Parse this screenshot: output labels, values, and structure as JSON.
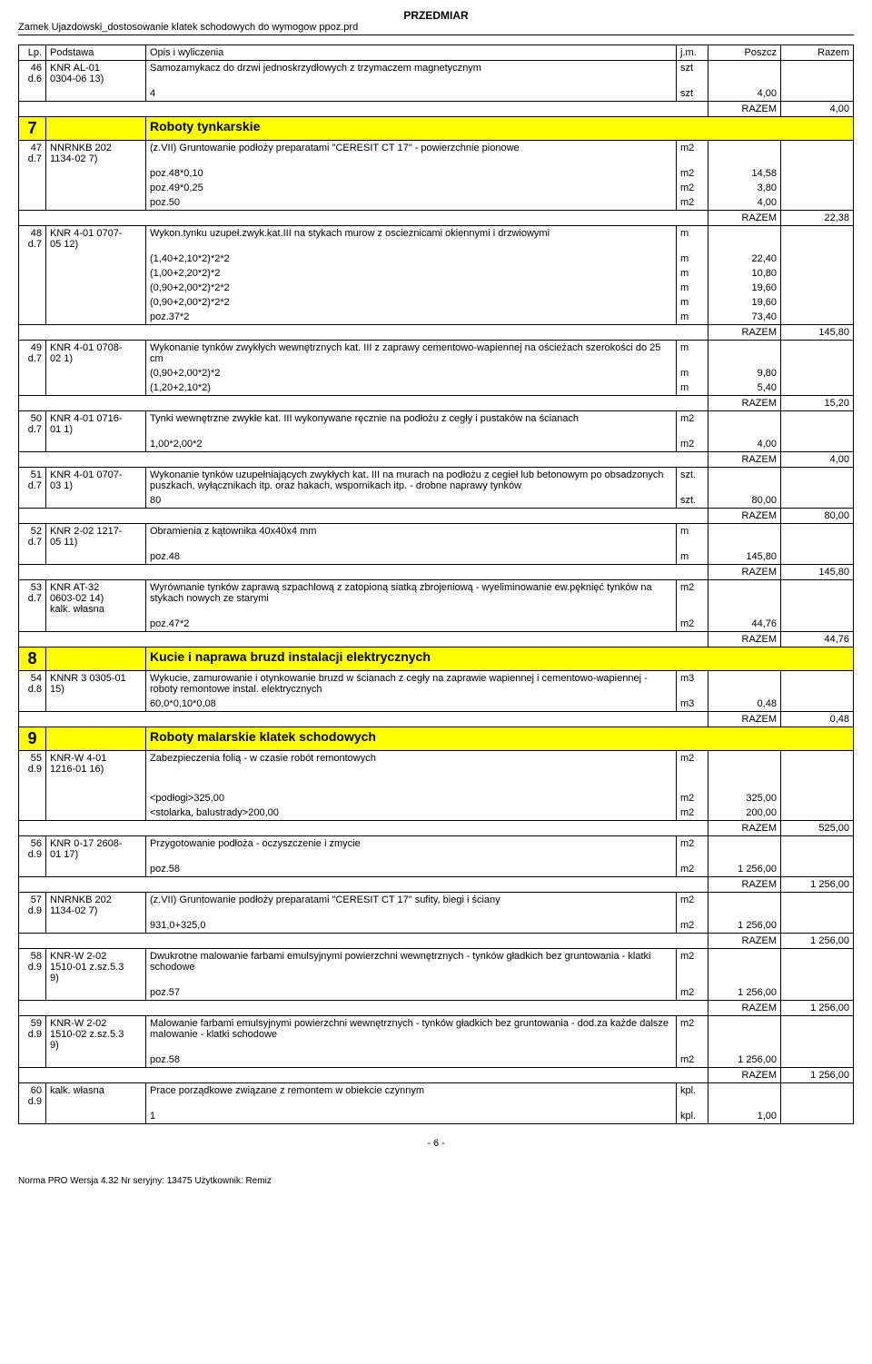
{
  "header": {
    "title": "PRZEDMIAR",
    "subtitle": "Zamek Ujazdowski_dostosowanie klatek schodowych do wymogow ppoz.prd"
  },
  "columns": {
    "lp": "Lp.",
    "podstawa": "Podstawa",
    "opis": "Opis i wyliczenia",
    "jm": "j.m.",
    "poszcz": "Poszcz",
    "razem": "Razem"
  },
  "r46": {
    "lp": "46",
    "sub": "d.6",
    "podst": "KNR AL-01",
    "podst2": "0304-06 13)",
    "opis": "Samozamykacz do drzwi jednoskrzydłowych z trzymaczem magnetycznym",
    "jm": "szt",
    "calc1": "4",
    "jm1": "szt",
    "v1": "4,00",
    "razem_lbl": "RAZEM",
    "razem_val": "4,00"
  },
  "s7": {
    "num": "7",
    "title": "Roboty tynkarskie"
  },
  "r47": {
    "lp": "47",
    "sub": "d.7",
    "podst": "NNRNKB 202",
    "podst2": "1134-02 7)",
    "opis": "(z.VII) Gruntowanie podłoży preparatami \"CERESIT CT 17\" - powierzchnie pionowe",
    "jm": "m2",
    "c1": "poz.48*0,10",
    "jm1": "m2",
    "v1": "14,58",
    "c2": "poz.49*0,25",
    "jm2": "m2",
    "v2": "3,80",
    "c3": "poz.50",
    "jm3": "m2",
    "v3": "4,00",
    "razem_lbl": "RAZEM",
    "razem_val": "22,38"
  },
  "r48": {
    "lp": "48",
    "sub": "d.7",
    "podst": "KNR 4-01 0707-",
    "podst2": "05 12)",
    "opis": "Wykon.tynku uzupeł.zwyk.kat.III na stykach murow z oscieznicami okiennymi i drzwiowymi",
    "jm": "m",
    "c1": "(1,40+2,10*2)*2*2",
    "jm1": "m",
    "v1": "22,40",
    "c2": "(1,00+2,20*2)*2",
    "jm2": "m",
    "v2": "10,80",
    "c3": "(0,90+2,00*2)*2*2",
    "jm3": "m",
    "v3": "19,60",
    "c4": "(0,90+2,00*2)*2*2",
    "jm4": "m",
    "v4": "19,60",
    "c5": "poz.37*2",
    "jm5": "m",
    "v5": "73,40",
    "razem_lbl": "RAZEM",
    "razem_val": "145,80"
  },
  "r49": {
    "lp": "49",
    "sub": "d.7",
    "podst": "KNR 4-01 0708-",
    "podst2": "02 1)",
    "opis": "Wykonanie tynków zwykłych wewnętrznych kat. III z zaprawy cementowo-wapiennej na ościeżach szerokości do 25 cm",
    "jm": "m",
    "c1": "(0,90+2,00*2)*2",
    "jm1": "m",
    "v1": "9,80",
    "c2": "(1,20+2,10*2)",
    "jm2": "m",
    "v2": "5,40",
    "razem_lbl": "RAZEM",
    "razem_val": "15,20"
  },
  "r50": {
    "lp": "50",
    "sub": "d.7",
    "podst": "KNR 4-01 0716-",
    "podst2": "01 1)",
    "opis": "Tynki wewnętrzne zwykłe kat. III wykonywane ręcznie na podłożu z cegły i pustaków na ścianach",
    "jm": "m2",
    "c1": "1,00*2,00*2",
    "jm1": "m2",
    "v1": "4,00",
    "razem_lbl": "RAZEM",
    "razem_val": "4,00"
  },
  "r51": {
    "lp": "51",
    "sub": "d.7",
    "podst": "KNR 4-01 0707-",
    "podst2": "03 1)",
    "opis": "Wykonanie tynków uzupełniających zwykłych kat. III na murach na podłożu z cegieł lub betonowym po obsadzonych puszkach, wyłącznikach itp. oraz hakach, wspornikach itp. - drobne naprawy tynków",
    "jm": "szt.",
    "c1": "80",
    "jm1": "szt.",
    "v1": "80,00",
    "razem_lbl": "RAZEM",
    "razem_val": "80,00"
  },
  "r52": {
    "lp": "52",
    "sub": "d.7",
    "podst": "KNR 2-02 1217-",
    "podst2": "05 11)",
    "opis": "Obramienia z kątownika 40x40x4 mm",
    "jm": "m",
    "c1": "poz.48",
    "jm1": "m",
    "v1": "145,80",
    "razem_lbl": "RAZEM",
    "razem_val": "145,80"
  },
  "r53": {
    "lp": "53",
    "sub": "d.7",
    "podst": "KNR AT-32",
    "podst2": "0603-02 14)",
    "podst3": "kalk. własna",
    "opis": "Wyrównanie tynków zaprawą szpachlową z zatopioną siatką zbrojeniową - wyeliminowanie ew.pęknięć tynków na stykach nowych ze starymi",
    "jm": "m2",
    "c1": "poz.47*2",
    "jm1": "m2",
    "v1": "44,76",
    "razem_lbl": "RAZEM",
    "razem_val": "44,76"
  },
  "s8": {
    "num": "8",
    "title": "Kucie i naprawa bruzd instalacji elektrycznych"
  },
  "r54": {
    "lp": "54",
    "sub": "d.8",
    "podst": "KNNR 3 0305-01",
    "podst2": "15)",
    "opis": "Wykucie, zamurowanie i otynkowanie bruzd w ścianach z cegły na zaprawie wapiennej i cementowo-wapiennej - roboty remontowe instal. elektrycznych",
    "jm": "m3",
    "c1": "60,0*0,10*0,08",
    "jm1": "m3",
    "v1": "0,48",
    "razem_lbl": "RAZEM",
    "razem_val": "0,48"
  },
  "s9": {
    "num": "9",
    "title": "Roboty malarskie klatek schodowych"
  },
  "r55": {
    "lp": "55",
    "sub": "d.9",
    "podst": "KNR-W 4-01",
    "podst2": "1216-01 16)",
    "opis": "Zabezpieczenia folią - w czasie robót remontowych",
    "jm": "m2",
    "c1": "<podłogi>325,00",
    "jm1": "m2",
    "v1": "325,00",
    "c2": "<stolarka, balustrady>200,00",
    "jm2": "m2",
    "v2": "200,00",
    "razem_lbl": "RAZEM",
    "razem_val": "525,00"
  },
  "r56": {
    "lp": "56",
    "sub": "d.9",
    "podst": "KNR 0-17 2608-",
    "podst2": "01 17)",
    "opis": "Przygotowanie podłoża - oczyszczenie i zmycie",
    "jm": "m2",
    "c1": "poz.58",
    "jm1": "m2",
    "v1": "1 256,00",
    "razem_lbl": "RAZEM",
    "razem_val": "1 256,00"
  },
  "r57": {
    "lp": "57",
    "sub": "d.9",
    "podst": "NNRNKB 202",
    "podst2": "1134-02 7)",
    "opis": "(z.VII) Gruntowanie podłoży preparatami \"CERESIT CT 17\"  sufity, biegi i ściany",
    "jm": "m2",
    "c1": "931,0+325,0",
    "jm1": "m2",
    "v1": "1 256,00",
    "razem_lbl": "RAZEM",
    "razem_val": "1 256,00"
  },
  "r58": {
    "lp": "58",
    "sub": "d.9",
    "podst": "KNR-W 2-02",
    "podst2": "1510-01 z.sz.5.3",
    "podst3": "9)",
    "opis": "Dwukrotne malowanie farbami emulsyjnymi powierzchni wewnętrznych - tynków gładkich bez gruntowania - klatki schodowe",
    "jm": "m2",
    "c1": "poz.57",
    "jm1": "m2",
    "v1": "1 256,00",
    "razem_lbl": "RAZEM",
    "razem_val": "1 256,00"
  },
  "r59": {
    "lp": "59",
    "sub": "d.9",
    "podst": "KNR-W 2-02",
    "podst2": "1510-02 z.sz.5.3",
    "podst3": "9)",
    "opis": "Malowanie farbami emulsyjnymi powierzchni wewnętrznych - tynków gładkich bez gruntowania - dod.za każde dalsze malowanie - klatki schodowe",
    "jm": "m2",
    "c1": "poz.58",
    "jm1": "m2",
    "v1": "1 256,00",
    "razem_lbl": "RAZEM",
    "razem_val": "1 256,00"
  },
  "r60": {
    "lp": "60",
    "sub": "d.9",
    "podst": "kalk. własna",
    "opis": "Prace porządkowe związane z remontem w obiekcie czynnym",
    "jm": "kpl.",
    "c1": "1",
    "jm1": "kpl.",
    "v1": "1,00"
  },
  "page": "- 6 -",
  "footer": "Norma PRO Wersja 4.32 Nr seryjny: 13475 Użytkownik: Remiz"
}
